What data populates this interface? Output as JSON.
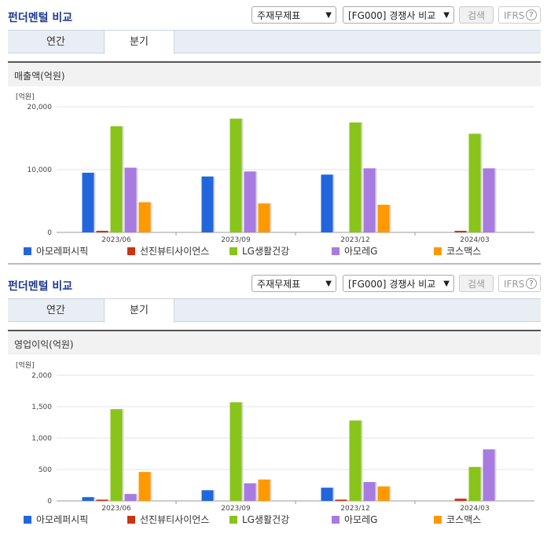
{
  "panels": [
    {
      "title": "펀더멘털 비교",
      "select1": "주재무제표",
      "select2": "[FG000] 경쟁사 비교",
      "search_label": "검색",
      "ifrs_label": "IFRS",
      "help_icon": "question-circle-icon",
      "tabs": [
        "연간",
        "분기"
      ],
      "active_tab": "분기",
      "section_label": "매출액(억원)",
      "unit_label": "[억원]"
    },
    {
      "title": "펀더멘털 비교",
      "select1": "주재무제표",
      "select2": "[FG000] 경쟁사 비교",
      "search_label": "검색",
      "ifrs_label": "IFRS",
      "help_icon": "question-circle-icon",
      "tabs": [
        "연간",
        "분기"
      ],
      "active_tab": "분기",
      "section_label": "영업이익(억원)",
      "unit_label": "[억원]"
    }
  ],
  "colors": {
    "아모레퍼시픽": "#2266dd",
    "선진뷰티사이언스": "#cc3311",
    "LG생활건강": "#88c41a",
    "아모레G": "#a77be0",
    "코스맥스": "#ff9900"
  },
  "chart_data": [
    {
      "type": "bar",
      "ylabel": "[억원]",
      "ylim": [
        0,
        20000
      ],
      "yticks": [
        0,
        10000,
        20000
      ],
      "ytick_labels": [
        "0",
        "10,000",
        "20,000"
      ],
      "categories": [
        "2023/06",
        "2023/09",
        "2023/12",
        "2024/03"
      ],
      "legend_placement": "bottom",
      "series": [
        {
          "name": "아모레퍼시픽",
          "values": [
            9500,
            8900,
            9200,
            null
          ]
        },
        {
          "name": "선진뷰티사이언스",
          "values": [
            250,
            null,
            null,
            250
          ]
        },
        {
          "name": "LG생활건강",
          "values": [
            16900,
            18100,
            17500,
            15700
          ]
        },
        {
          "name": "아모레G",
          "values": [
            10300,
            9700,
            10200,
            10200
          ]
        },
        {
          "name": "코스맥스",
          "values": [
            4800,
            4600,
            4400,
            null
          ]
        }
      ]
    },
    {
      "type": "bar",
      "ylabel": "[억원]",
      "ylim": [
        0,
        2000
      ],
      "yticks": [
        0,
        500,
        1000,
        1500,
        2000
      ],
      "ytick_labels": [
        "0",
        "500",
        "1,000",
        "1,500",
        "2,000"
      ],
      "categories": [
        "2023/06",
        "2023/09",
        "2023/12",
        "2024/03"
      ],
      "legend_placement": "bottom",
      "series": [
        {
          "name": "아모레퍼시픽",
          "values": [
            60,
            170,
            210,
            null
          ]
        },
        {
          "name": "선진뷰티사이언스",
          "values": [
            20,
            null,
            20,
            35
          ]
        },
        {
          "name": "LG생활건강",
          "values": [
            1460,
            1570,
            1280,
            540
          ]
        },
        {
          "name": "아모레G",
          "values": [
            110,
            280,
            300,
            820
          ]
        },
        {
          "name": "코스맥스",
          "values": [
            460,
            340,
            230,
            null
          ]
        }
      ]
    }
  ]
}
